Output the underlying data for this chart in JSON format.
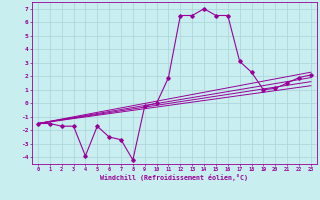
{
  "bg_color": "#c8eef0",
  "grid_color": "#aad4d8",
  "line_color": "#990099",
  "xlabel": "Windchill (Refroidissement éolien,°C)",
  "xlim": [
    -0.5,
    23.5
  ],
  "ylim": [
    -4.5,
    7.5
  ],
  "yticks": [
    -4,
    -3,
    -2,
    -1,
    0,
    1,
    2,
    3,
    4,
    5,
    6,
    7
  ],
  "xticks": [
    0,
    1,
    2,
    3,
    4,
    5,
    6,
    7,
    8,
    9,
    10,
    11,
    12,
    13,
    14,
    15,
    16,
    17,
    18,
    19,
    20,
    21,
    22,
    23
  ],
  "main_x": [
    0,
    1,
    2,
    3,
    4,
    5,
    6,
    7,
    8,
    9,
    10,
    11,
    12,
    13,
    14,
    15,
    16,
    17,
    18,
    19,
    20,
    21,
    22,
    23
  ],
  "main_y": [
    -1.5,
    -1.5,
    -1.7,
    -1.7,
    -3.9,
    -1.7,
    -2.5,
    -2.7,
    -4.2,
    -0.2,
    0.0,
    1.9,
    6.5,
    6.5,
    7.0,
    6.5,
    6.5,
    3.1,
    2.3,
    1.0,
    1.1,
    1.5,
    1.9,
    2.1
  ],
  "ref_lines": [
    {
      "x": [
        0,
        23
      ],
      "y": [
        -1.5,
        1.3
      ]
    },
    {
      "x": [
        0,
        23
      ],
      "y": [
        -1.5,
        1.6
      ]
    },
    {
      "x": [
        0,
        23
      ],
      "y": [
        -1.5,
        1.9
      ]
    },
    {
      "x": [
        0,
        23
      ],
      "y": [
        -1.5,
        2.3
      ]
    }
  ]
}
